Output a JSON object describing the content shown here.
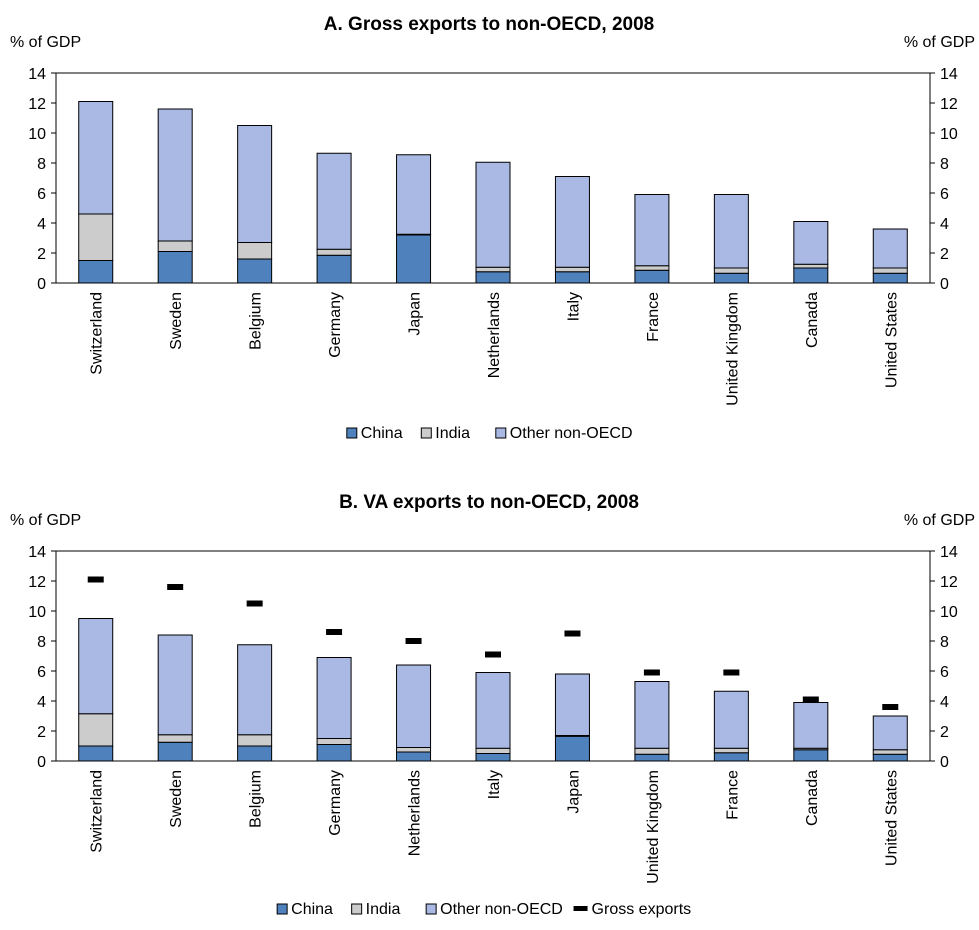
{
  "chart_data": [
    {
      "type": "bar",
      "stacked": true,
      "title": "A. Gross exports to non-OECD, 2008",
      "ylabel_left": "% of GDP",
      "ylabel_right": "% of GDP",
      "ylim": [
        0,
        14
      ],
      "yticks": [
        0,
        2,
        4,
        6,
        8,
        10,
        12,
        14
      ],
      "categories": [
        "Switzerland",
        "Sweden",
        "Belgium",
        "Germany",
        "Japan",
        "Netherlands",
        "Italy",
        "France",
        "United Kingdom",
        "Canada",
        "United States"
      ],
      "series": [
        {
          "name": "China",
          "color": "#4f81bd",
          "values": [
            1.5,
            2.1,
            1.6,
            1.85,
            3.2,
            0.75,
            0.75,
            0.85,
            0.65,
            1.0,
            0.65
          ]
        },
        {
          "name": "India",
          "color": "#cccccc",
          "values": [
            3.1,
            0.7,
            1.1,
            0.4,
            0.05,
            0.3,
            0.3,
            0.3,
            0.35,
            0.25,
            0.35
          ]
        },
        {
          "name": "Other non-OECD",
          "color": "#a9b9e3",
          "values": [
            7.5,
            8.8,
            7.8,
            6.4,
            5.3,
            7.0,
            6.05,
            4.75,
            4.9,
            2.85,
            2.6
          ]
        }
      ],
      "legend": [
        "China",
        "India",
        "Other non-OECD"
      ],
      "legend_position": "bottom"
    },
    {
      "type": "bar",
      "stacked": true,
      "title": "B. VA exports to non-OECD, 2008",
      "ylabel_left": "% of GDP",
      "ylabel_right": "% of GDP",
      "ylim": [
        0,
        14
      ],
      "yticks": [
        0,
        2,
        4,
        6,
        8,
        10,
        12,
        14
      ],
      "categories": [
        "Switzerland",
        "Sweden",
        "Belgium",
        "Germany",
        "Netherlands",
        "Italy",
        "Japan",
        "United Kingdom",
        "France",
        "Canada",
        "United States"
      ],
      "series": [
        {
          "name": "China",
          "color": "#4f81bd",
          "values": [
            1.0,
            1.25,
            1.0,
            1.1,
            0.6,
            0.5,
            1.65,
            0.45,
            0.55,
            0.75,
            0.45
          ]
        },
        {
          "name": "India",
          "color": "#cccccc",
          "values": [
            2.15,
            0.5,
            0.75,
            0.4,
            0.3,
            0.35,
            0.05,
            0.4,
            0.3,
            0.1,
            0.3
          ]
        },
        {
          "name": "Other non-OECD",
          "color": "#a9b9e3",
          "values": [
            6.35,
            6.65,
            6.0,
            5.4,
            5.5,
            5.05,
            4.1,
            4.45,
            3.8,
            3.05,
            2.25
          ]
        }
      ],
      "markers": {
        "name": "Gross exports",
        "color": "#000000",
        "values": [
          12.1,
          11.6,
          10.5,
          8.6,
          8.0,
          7.1,
          8.5,
          5.9,
          5.9,
          4.1,
          3.6
        ]
      },
      "legend": [
        "China",
        "India",
        "Other non-OECD",
        "Gross exports"
      ],
      "legend_position": "bottom"
    }
  ]
}
